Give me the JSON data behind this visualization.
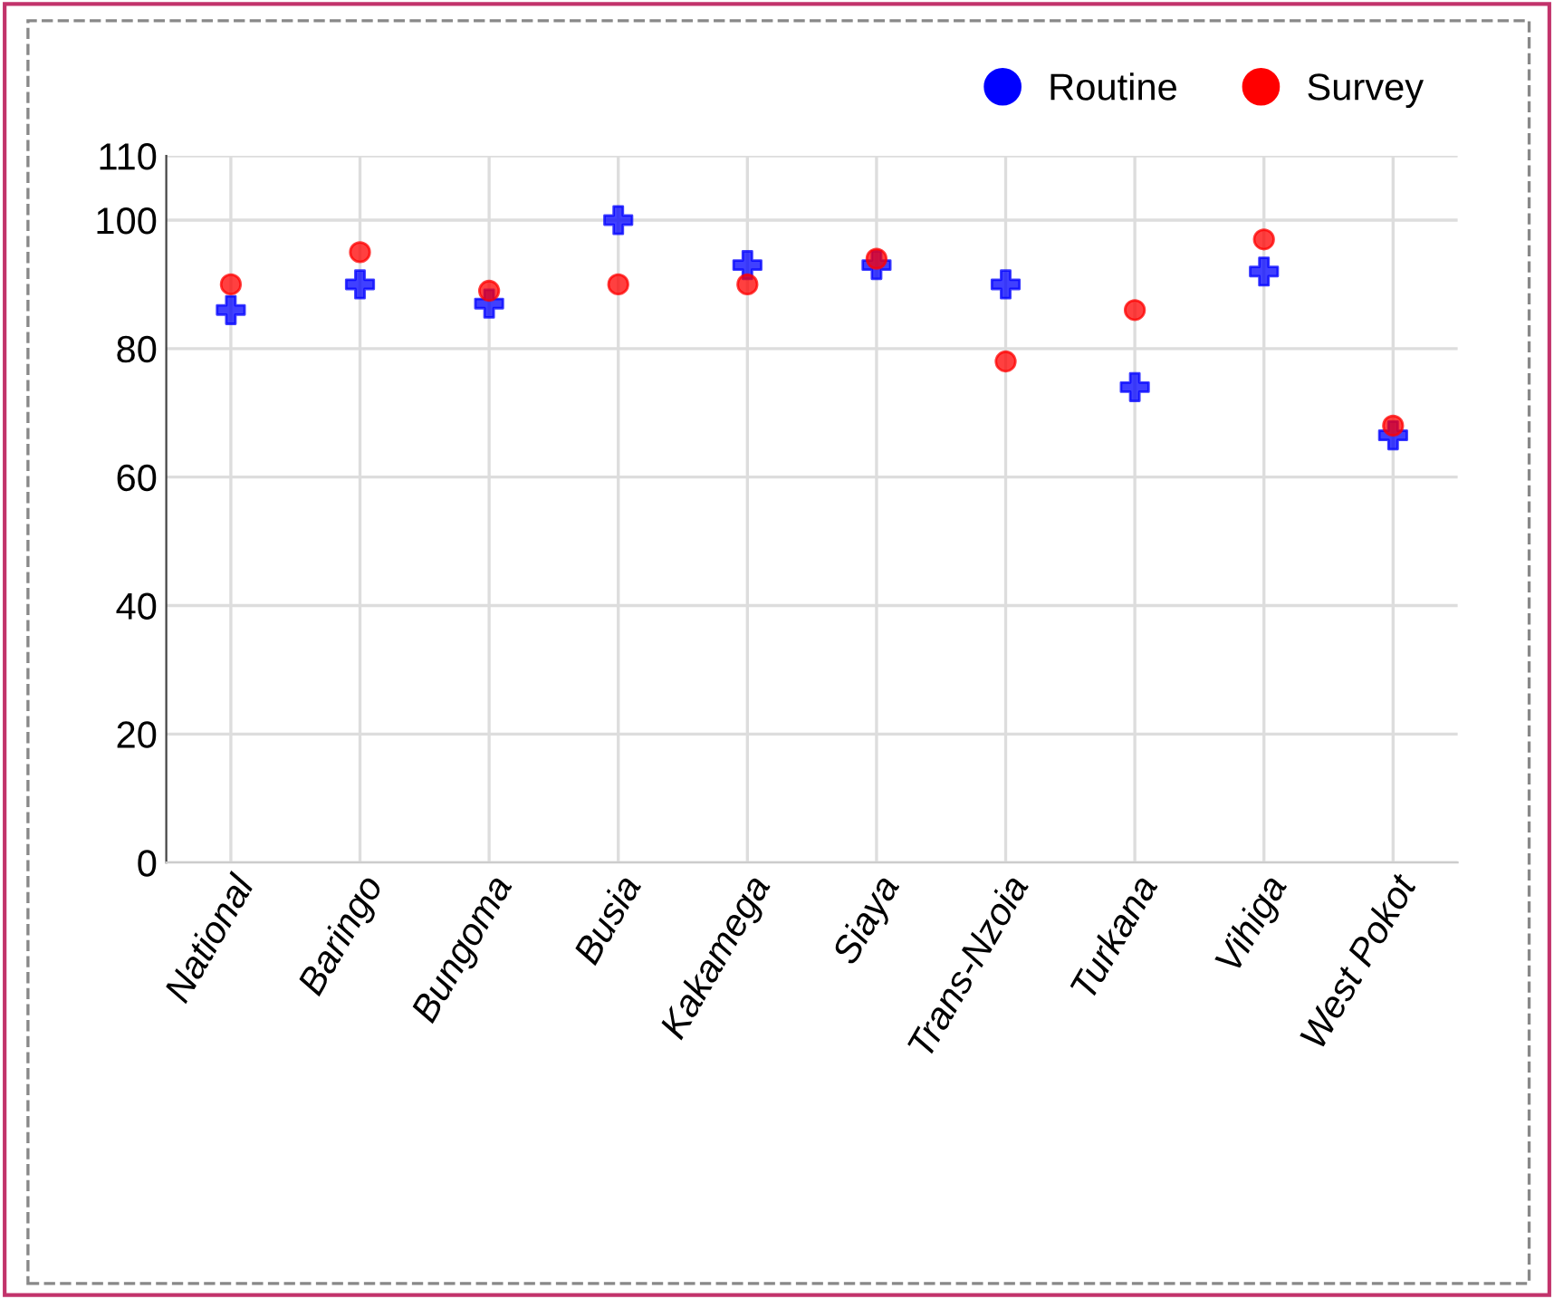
{
  "chart_data": {
    "type": "scatter",
    "categories": [
      "National",
      "Baringo",
      "Bungoma",
      "Busia",
      "Kakamega",
      "Siaya",
      "Trans-Nzoia",
      "Turkana",
      "Vihiga",
      "West Pokot"
    ],
    "series": [
      {
        "name": "Routine",
        "color": "#0000ff",
        "marker": "cross",
        "values": [
          86,
          90,
          87,
          100,
          93,
          93,
          90,
          74,
          92,
          66.5
        ]
      },
      {
        "name": "Survey",
        "color": "#ff0000",
        "marker": "circle",
        "values": [
          90,
          95,
          89,
          90,
          90,
          94,
          78,
          86,
          97,
          68
        ]
      }
    ],
    "ylim": [
      0,
      110
    ],
    "yticks": [
      0,
      20,
      40,
      60,
      80,
      100,
      110
    ],
    "grid": true,
    "legend": "top right"
  }
}
